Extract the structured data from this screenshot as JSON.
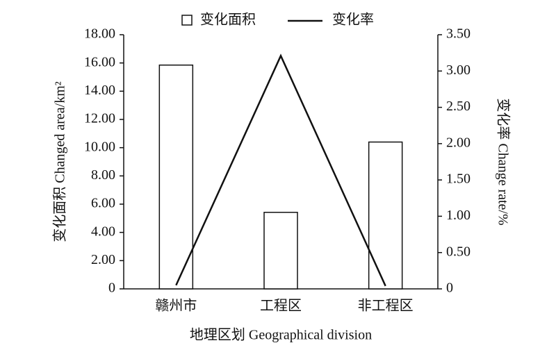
{
  "chart_data": {
    "type": "bar",
    "x_label": "地理区划 Geographical division",
    "y_label": "变化面积 Changed area/km²",
    "y2_label": "变化率 Change rate/%",
    "categories": [
      "赣州市",
      "工程区",
      "非工程区"
    ],
    "series": [
      {
        "name": "变化面积",
        "type": "bar",
        "color": "#ffffff",
        "values": [
          15.85,
          5.42,
          10.4
        ]
      },
      {
        "name": "变化率",
        "type": "line",
        "color": "#111111",
        "axis": "y2",
        "values": [
          0.05,
          3.21,
          0.04
        ]
      }
    ],
    "ylim": [
      0,
      18
    ],
    "yticks": [
      0,
      {
        "value": 2,
        "label": "2.00"
      },
      {
        "value": 4,
        "label": "4.00"
      },
      {
        "value": 6,
        "label": "6.00"
      },
      {
        "value": 8,
        "label": "8.00"
      },
      {
        "value": 10,
        "label": "10.00"
      },
      {
        "value": 12,
        "label": "12.00"
      },
      {
        "value": 14,
        "label": "14.00"
      },
      {
        "value": 16,
        "label": "16.00"
      },
      {
        "value": 18,
        "label": "18.00"
      }
    ],
    "y2lim": [
      0,
      3.5
    ],
    "y2ticks": [
      0,
      {
        "value": 0.5,
        "label": "0.50"
      },
      {
        "value": 1,
        "label": "1.00"
      },
      {
        "value": 1.5,
        "label": "1.50"
      },
      {
        "value": 2,
        "label": "2.00"
      },
      {
        "value": 2.5,
        "label": "2.50"
      },
      {
        "value": 3,
        "label": "3.00"
      },
      {
        "value": 3.5,
        "label": "3.50"
      }
    ],
    "legend": "top"
  }
}
